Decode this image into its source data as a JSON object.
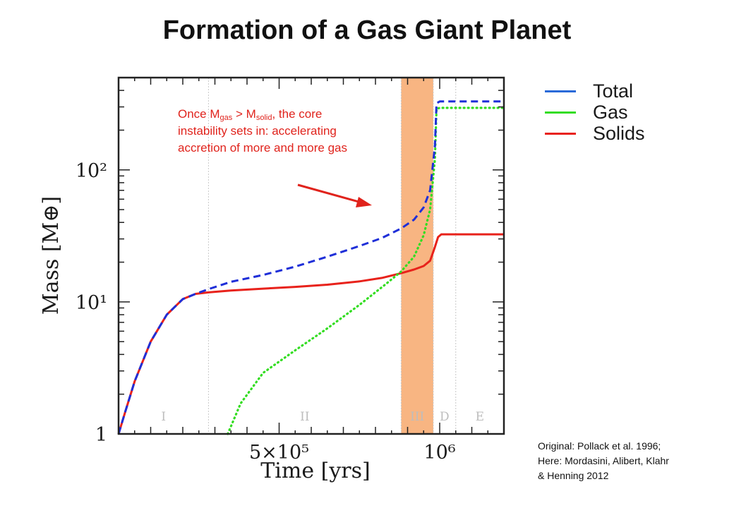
{
  "title": "Formation of a Gas Giant Planet",
  "annotation": {
    "prefix": "Once M",
    "gas_sub": "gas",
    "middle": " > M",
    "solid_sub": "solid",
    "suffix": ", the core instability sets in: accelerating accretion of more and more gas"
  },
  "source": {
    "line1": "Original: Pollack et al. 1996;",
    "line2": "Here: Mordasini, Alibert, Klahr",
    "line3": "& Henning 2012"
  },
  "colors": {
    "total": "#1f2fd8",
    "gas": "#33dd22",
    "solids": "#e8221b",
    "highlight": "#f7a86c",
    "annotation": "#e0231c",
    "legend_total": "#2a6ad8"
  },
  "chart_data": {
    "type": "line",
    "title": "Formation of a Gas Giant Planet",
    "xlabel": "Time [yrs]",
    "ylabel": "Mass [M⊕]",
    "x_scale": "linear",
    "y_scale": "log",
    "xlim": [
      0,
      1200000
    ],
    "ylim": [
      1,
      500
    ],
    "x_ticks": [
      {
        "value": 500000,
        "label": "5×10⁵"
      },
      {
        "value": 1000000,
        "label": "10⁶"
      }
    ],
    "y_ticks": [
      {
        "value": 1,
        "label": "1"
      },
      {
        "value": 10,
        "label": "10¹"
      },
      {
        "value": 100,
        "label": "10²"
      }
    ],
    "legend": {
      "position": "top-right",
      "entries": [
        "Total",
        "Gas",
        "Solids"
      ]
    },
    "phases": [
      {
        "label": "I",
        "start": 0,
        "end": 280000
      },
      {
        "label": "II",
        "start": 280000,
        "end": 880000
      },
      {
        "label": "III",
        "start": 880000,
        "end": 980000
      },
      {
        "label": "D",
        "start": 980000,
        "end": 1050000
      },
      {
        "label": "E",
        "start": 1050000,
        "end": 1200000
      }
    ],
    "highlight_range": [
      880000,
      980000
    ],
    "series": [
      {
        "name": "Total",
        "style": "dashed",
        "x": [
          0,
          20000,
          50000,
          100000,
          150000,
          200000,
          240000,
          280000,
          350000,
          450000,
          550000,
          650000,
          750000,
          820000,
          880000,
          920000,
          950000,
          970000,
          985000,
          990000,
          1000000,
          1050000,
          1200000
        ],
        "y": [
          1.0,
          1.45,
          2.5,
          5.0,
          8.0,
          10.5,
          11.5,
          12.5,
          14.2,
          16.0,
          18.5,
          22.0,
          26.5,
          30.5,
          36.0,
          42.0,
          52.0,
          70.0,
          150.0,
          320.0,
          330.0,
          330.0,
          330.0
        ]
      },
      {
        "name": "Gas",
        "style": "dotted",
        "x": [
          340000,
          380000,
          450000,
          550000,
          650000,
          750000,
          830000,
          880000,
          920000,
          950000,
          970000,
          985000,
          990000,
          1000000,
          1050000,
          1200000
        ],
        "y": [
          1.0,
          1.7,
          2.9,
          4.3,
          6.3,
          9.5,
          13.5,
          17.0,
          22.0,
          32.0,
          50.0,
          120.0,
          290.0,
          295.0,
          295.0,
          295.0
        ]
      },
      {
        "name": "Solids",
        "style": "solid",
        "x": [
          0,
          20000,
          50000,
          100000,
          150000,
          200000,
          240000,
          280000,
          350000,
          450000,
          550000,
          650000,
          750000,
          820000,
          880000,
          920000,
          950000,
          970000,
          985000,
          995000,
          1005000,
          1050000,
          1200000
        ],
        "y": [
          1.0,
          1.45,
          2.5,
          5.0,
          8.0,
          10.5,
          11.5,
          11.8,
          12.2,
          12.6,
          13.0,
          13.5,
          14.3,
          15.2,
          16.5,
          17.6,
          18.7,
          20.5,
          26.0,
          31.0,
          32.5,
          32.5,
          32.5
        ]
      }
    ]
  }
}
